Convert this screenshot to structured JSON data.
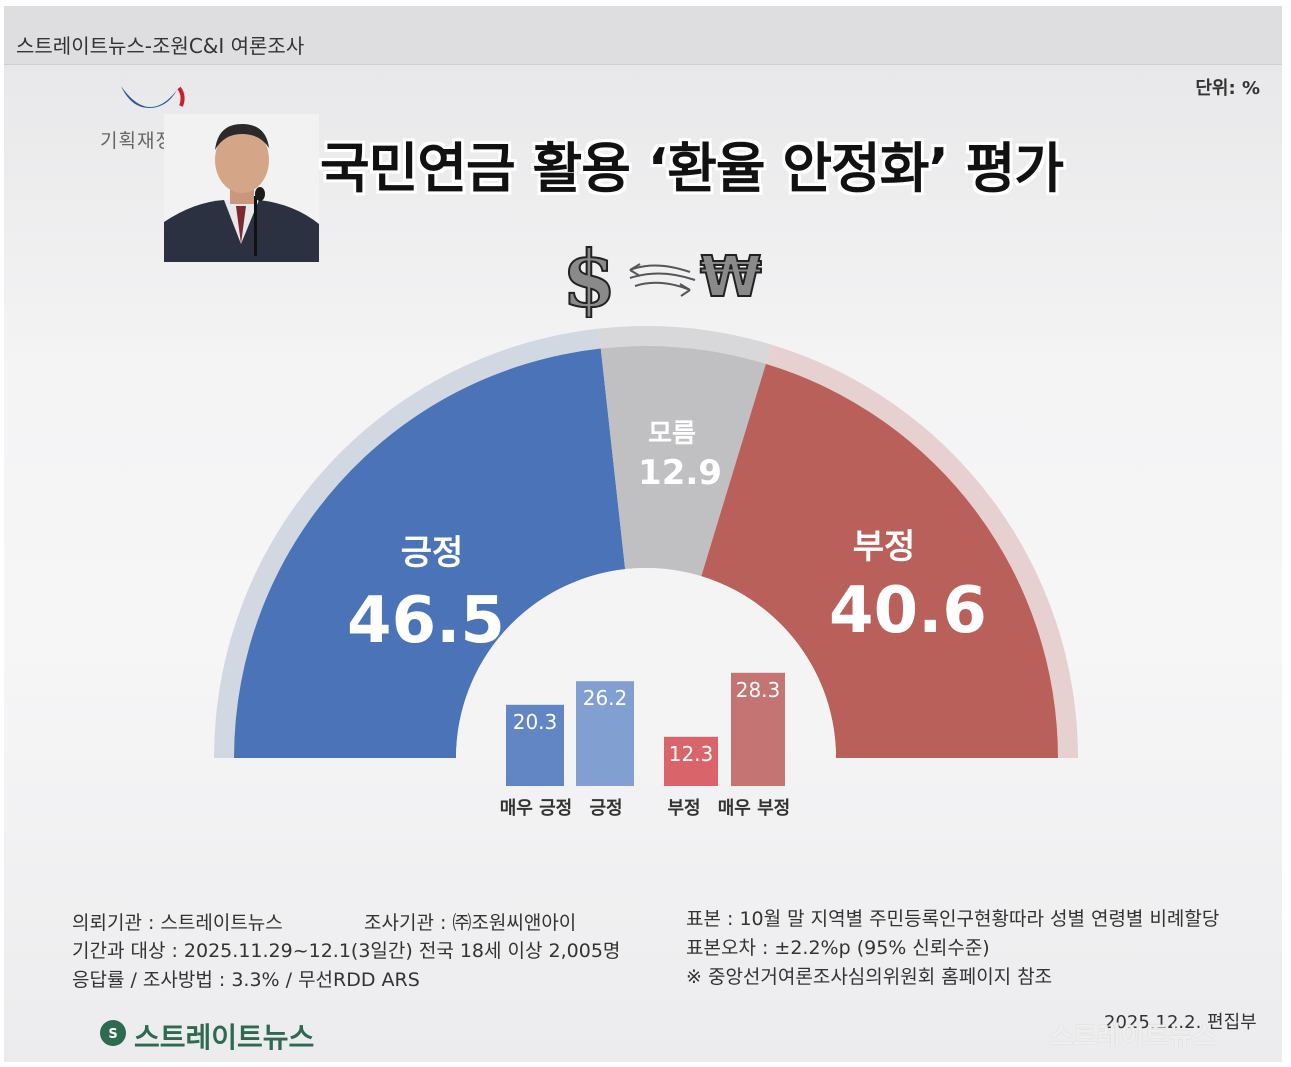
{
  "header": {
    "source": "스트레이트뉴스-조원C&I 여론조사"
  },
  "unit_label": "단위: %",
  "ministry_label": "기획재정부",
  "title": "국민연금 활용 ‘환율 안정화’ 평가",
  "icons": [
    "dollar-icon",
    "exchange-arrows-icon",
    "won-icon"
  ],
  "colors": {
    "positive": "#4a73b8",
    "unknown": "#c0c0c2",
    "negative": "#b9605b",
    "strong_positive": "#6285c4",
    "weak_positive": "#819fd0",
    "weak_negative": "#d9646a",
    "strong_negative": "#c47473"
  },
  "chart_data": [
    {
      "type": "pie",
      "style": "half-donut",
      "categories": [
        "긍정",
        "모름",
        "부정"
      ],
      "values": [
        46.5,
        12.9,
        40.6
      ],
      "value_labels": [
        "46.5",
        "12.9",
        "40.6"
      ]
    },
    {
      "type": "bar",
      "categories": [
        "매우 긍정",
        "긍정",
        "부정",
        "매우 부정"
      ],
      "values": [
        20.3,
        26.2,
        12.3,
        28.3
      ],
      "value_labels": [
        "20.3",
        "26.2",
        "12.3",
        "28.3"
      ]
    }
  ],
  "footer": {
    "client": "의뢰기관 : 스트레이트뉴스",
    "agency": "조사기관 : ㈜조원씨앤아이",
    "period": "기간과 대상 : 2025.11.29~12.1(3일간)   전국 18세 이상  2,005명",
    "method": "응답률 / 조사방법 : 3.3% / 무선RDD ARS",
    "sample": "표본 : 10월 말 지역별 주민등록인구현황따라 성별 연령별 비례할당",
    "error": "표본오차 : ±2.2%p (95% 신뢰수준)",
    "note": "※ 중앙선거여론조사심의위원회 홈페이지 참조",
    "date": "2025.12.2. 편집부"
  },
  "brand": "스트레이트뉴스",
  "watermark": "스트레이트뉴스"
}
